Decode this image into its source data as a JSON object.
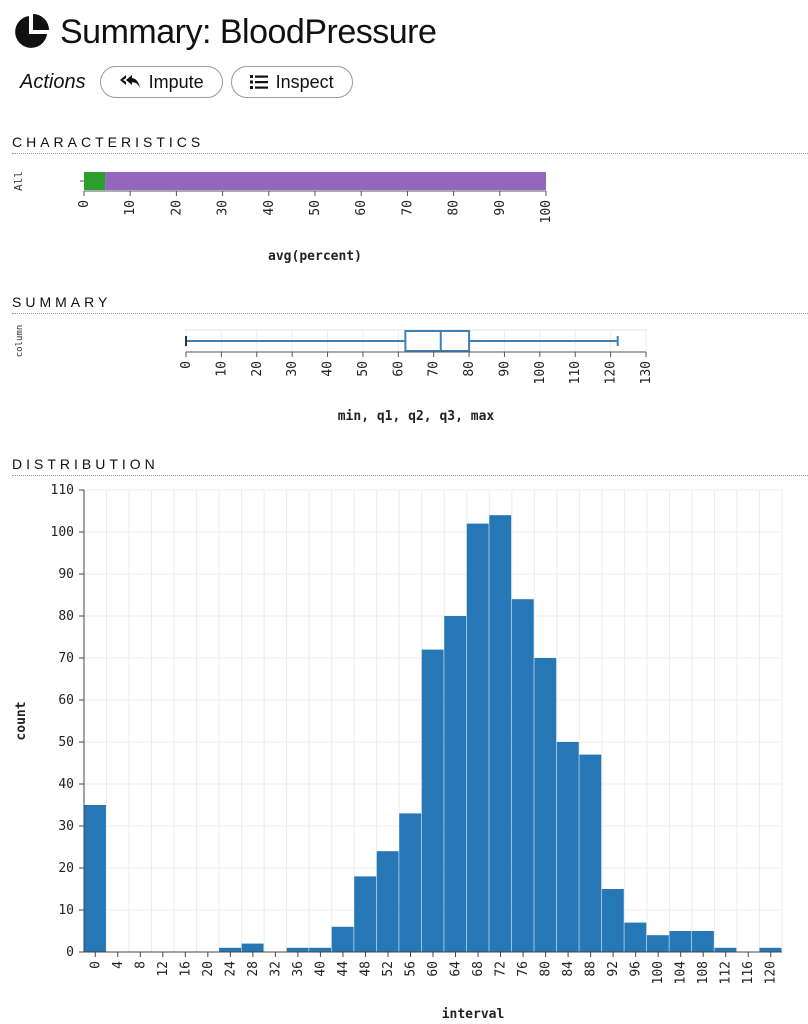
{
  "header": {
    "title": "Summary: BloodPressure",
    "icon": "pie-chart-icon"
  },
  "actions": {
    "label": "Actions",
    "buttons": [
      {
        "label": "Impute",
        "icon": "reply-all-icon"
      },
      {
        "label": "Inspect",
        "icon": "list-icon"
      }
    ]
  },
  "sections": {
    "characteristics": "CHARACTERISTICS",
    "summary": "SUMMARY",
    "distribution": "DISTRIBUTION"
  },
  "colors": {
    "bar_blue": "#2677b5",
    "green": "#2ca02c",
    "purple": "#9467bd",
    "box_stroke": "#3d7fb8"
  },
  "chart_data": [
    {
      "type": "bar",
      "orientation": "horizontal-stacked",
      "categories": [
        "All"
      ],
      "series": [
        {
          "values": [
            4.56
          ],
          "color": "#2ca02c"
        },
        {
          "values": [
            95.44
          ],
          "color": "#9467bd"
        }
      ],
      "xlabel": "avg(percent)",
      "xlim": [
        0,
        100
      ],
      "xticks": [
        0,
        10,
        20,
        30,
        40,
        50,
        60,
        70,
        80,
        90,
        100
      ]
    },
    {
      "type": "boxplot",
      "categories": [
        "column"
      ],
      "min": 0,
      "q1": 62,
      "q2": 72,
      "q3": 80,
      "max": 122,
      "xlabel": "min, q1, q2, q3, max",
      "xlim": [
        0,
        130
      ],
      "xticks": [
        0,
        10,
        20,
        30,
        40,
        50,
        60,
        70,
        80,
        90,
        100,
        110,
        120,
        130
      ]
    },
    {
      "type": "bar",
      "bin_width": 4,
      "x": [
        0,
        4,
        8,
        12,
        16,
        20,
        24,
        28,
        32,
        36,
        40,
        44,
        48,
        52,
        56,
        60,
        64,
        68,
        72,
        76,
        80,
        84,
        88,
        92,
        96,
        100,
        104,
        108,
        112,
        116,
        120
      ],
      "values": [
        35,
        0,
        0,
        0,
        0,
        0,
        1,
        2,
        0,
        1,
        1,
        6,
        18,
        24,
        33,
        72,
        80,
        102,
        104,
        84,
        70,
        50,
        47,
        15,
        7,
        4,
        5,
        5,
        1,
        0,
        1
      ],
      "xlabel": "interval",
      "ylabel": "count",
      "ylim": [
        0,
        110
      ],
      "yticks": [
        0,
        10,
        20,
        30,
        40,
        50,
        60,
        70,
        80,
        90,
        100,
        110
      ],
      "xticks": [
        0,
        4,
        8,
        12,
        16,
        20,
        24,
        28,
        32,
        36,
        40,
        44,
        48,
        52,
        56,
        60,
        64,
        68,
        72,
        76,
        80,
        84,
        88,
        92,
        96,
        100,
        104,
        108,
        112,
        116,
        120
      ],
      "grid": true
    }
  ]
}
